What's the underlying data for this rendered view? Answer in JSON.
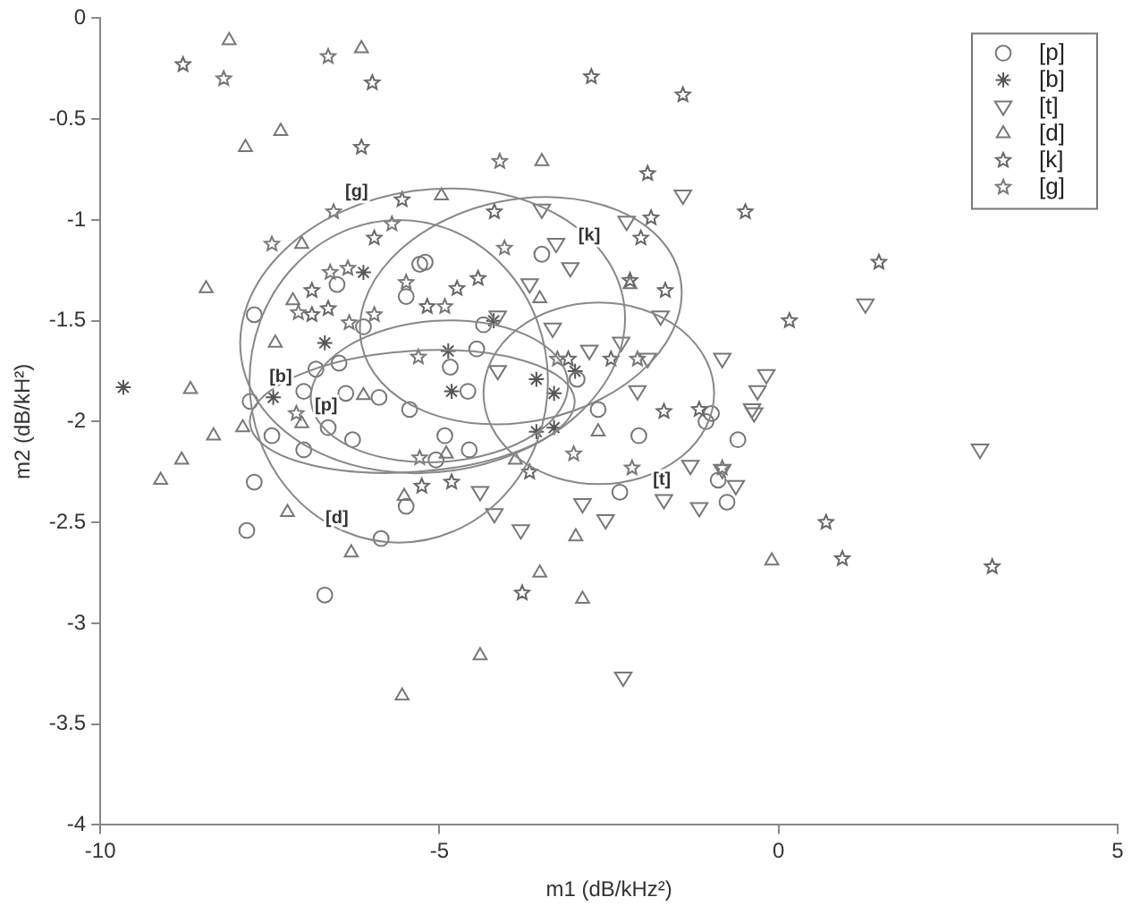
{
  "chart_data": {
    "type": "scatter",
    "xlabel": "m1 (dB/kHz²)",
    "ylabel": "m2 (dB/kH²)",
    "xlim": [
      -10,
      5
    ],
    "xticks": [
      -10,
      -5,
      0,
      5
    ],
    "ylim": [
      -4,
      0
    ],
    "yticks": [
      -4,
      -3.5,
      -3,
      -2.5,
      -2,
      -1.5,
      -1,
      -0.5,
      0
    ],
    "grid": false,
    "legend": "top right",
    "annotations": [
      "[g]",
      "[k]",
      "[b]",
      "[p]",
      "[d]",
      "[t]"
    ],
    "series": [
      {
        "name": "[p]",
        "type": "scatter",
        "marker": "circle",
        "color": "#777777",
        "x": [
          -7.73,
          -6.51,
          -5.29,
          -5.49,
          -6.82,
          -6.48,
          -7.0,
          -6.38,
          -5.89,
          -5.44,
          -7.79,
          -6.12,
          -7.47,
          -7.0,
          -6.64,
          -6.28,
          -7.73,
          -7.84,
          -6.69,
          -5.86,
          -5.49,
          -5.05,
          -5.21,
          -4.35,
          -4.45,
          -4.84,
          -4.58,
          -3.49,
          -2.97,
          -2.66,
          -0.99,
          -4.92,
          -4.56,
          -2.06,
          -2.34,
          -0.76,
          -0.89,
          -0.6,
          -1.07
        ],
        "values": [
          -1.47,
          -1.32,
          -1.22,
          -1.38,
          -1.74,
          -1.71,
          -1.85,
          -1.86,
          -1.88,
          -1.94,
          -1.9,
          -1.53,
          -2.07,
          -2.14,
          -2.03,
          -2.09,
          -2.3,
          -2.54,
          -2.86,
          -2.58,
          -2.42,
          -2.19,
          -1.21,
          -1.52,
          -1.64,
          -1.73,
          -1.85,
          -1.17,
          -1.79,
          -1.94,
          -1.96,
          -2.07,
          -2.14,
          -2.07,
          -2.35,
          -2.4,
          -2.29,
          -2.09,
          -2.0
        ]
      },
      {
        "name": "[b]",
        "type": "scatter",
        "marker": "cross",
        "color": "#555555",
        "x": [
          -9.66,
          -7.45,
          -6.69,
          -6.12,
          -4.87,
          -3.57,
          -3.31,
          -4.82,
          -4.2,
          -3.0,
          -3.57,
          -3.31
        ],
        "values": [
          -1.83,
          -1.88,
          -1.61,
          -1.26,
          -1.65,
          -1.79,
          -1.86,
          -1.85,
          -1.5,
          -1.75,
          -2.05,
          -2.03
        ]
      },
      {
        "name": "[t]",
        "type": "scatter",
        "marker": "triangle_down",
        "color": "#777777",
        "x": [
          -3.49,
          -2.24,
          -1.41,
          -3.28,
          -3.07,
          -3.67,
          -4.14,
          -3.33,
          -2.32,
          -1.93,
          -2.79,
          -1.74,
          -0.83,
          -0.18,
          -0.31,
          -0.39,
          -4.14,
          -2.08,
          1.28,
          -4.4,
          -4.19,
          -3.8,
          -2.89,
          -2.55,
          -1.69,
          -1.17,
          -1.3,
          -0.83,
          -0.63,
          -2.29,
          -0.36,
          2.97
        ],
        "values": [
          -0.95,
          -1.01,
          -0.88,
          -1.12,
          -1.24,
          -1.32,
          -1.48,
          -1.54,
          -1.61,
          -1.69,
          -1.65,
          -1.48,
          -1.69,
          -1.77,
          -1.85,
          -1.94,
          -1.75,
          -1.85,
          -1.42,
          -2.35,
          -2.46,
          -2.54,
          -2.41,
          -2.49,
          -2.39,
          -2.43,
          -2.22,
          -2.24,
          -2.32,
          -3.27,
          -1.96,
          -2.14
        ]
      },
      {
        "name": "[d]",
        "type": "scatter",
        "marker": "triangle",
        "color": "#777777",
        "x": [
          -8.1,
          -6.15,
          -7.86,
          -7.34,
          -8.44,
          -8.67,
          -7.42,
          -7.16,
          -7.03,
          -3.49,
          -4.97,
          -3.52,
          -2.19,
          -9.11,
          -8.8,
          -8.33,
          -7.9,
          -7.24,
          -7.03,
          -6.3,
          -5.55,
          -5.52,
          -2.99,
          -3.52,
          -2.89,
          -4.4,
          -4.9,
          -3.88,
          -2.66,
          -0.1,
          -6.12
        ],
        "values": [
          -0.11,
          -0.15,
          -0.64,
          -0.56,
          -1.34,
          -1.84,
          -1.61,
          -1.4,
          -1.12,
          -0.71,
          -0.88,
          -1.39,
          -1.32,
          -2.29,
          -2.19,
          -2.07,
          -2.03,
          -2.45,
          -2.01,
          -2.65,
          -3.36,
          -2.37,
          -2.57,
          -2.75,
          -2.88,
          -3.16,
          -2.16,
          -2.19,
          -2.05,
          -2.69,
          -1.87
        ]
      },
      {
        "name": "[k]",
        "type": "scatter",
        "marker": "star",
        "color": "#666666",
        "x": [
          -8.78,
          -5.99,
          -6.15,
          -5.55,
          -5.96,
          -6.88,
          -6.64,
          -6.88,
          -5.18,
          -2.76,
          -1.41,
          -1.93,
          -1.88,
          -2.03,
          -0.49,
          -4.19,
          -2.19,
          -1.67,
          -4.43,
          -4.74,
          -2.47,
          -3.1,
          -1.69,
          -1.17,
          1.48,
          0.16,
          0.7,
          0.94,
          3.15,
          -3.78,
          -4.82,
          -3.67,
          -5.26
        ],
        "values": [
          -0.23,
          -0.32,
          -0.64,
          -0.9,
          -1.09,
          -1.35,
          -1.44,
          -1.47,
          -1.43,
          -0.29,
          -0.38,
          -0.77,
          -0.99,
          -1.09,
          -0.96,
          -0.96,
          -1.3,
          -1.35,
          -1.29,
          -1.34,
          -1.69,
          -1.69,
          -1.95,
          -1.94,
          -1.21,
          -1.5,
          -2.5,
          -2.68,
          -2.72,
          -2.85,
          -2.3,
          -2.25,
          -2.32
        ]
      },
      {
        "name": "[g]",
        "type": "scatter",
        "marker": "star",
        "color": "#777777",
        "x": [
          -8.18,
          -6.64,
          -6.56,
          -7.47,
          -5.7,
          -6.61,
          -6.35,
          -5.49,
          -7.08,
          -6.33,
          -5.96,
          -7.11,
          -5.31,
          -4.11,
          -4.04,
          -4.92,
          -2.08,
          -3.26,
          -2.16,
          -3.02,
          -0.83,
          -5.29
        ],
        "values": [
          -0.3,
          -0.19,
          -0.96,
          -1.12,
          -1.02,
          -1.26,
          -1.24,
          -1.31,
          -1.46,
          -1.51,
          -1.47,
          -1.96,
          -1.68,
          -0.71,
          -1.14,
          -1.43,
          -1.69,
          -1.69,
          -2.23,
          -2.16,
          -2.23,
          -2.18
        ]
      }
    ]
  }
}
